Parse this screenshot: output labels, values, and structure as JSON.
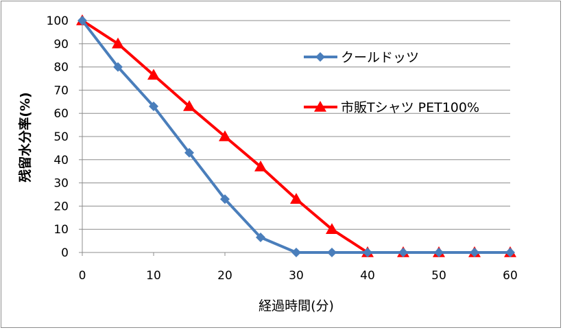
{
  "chart_data": {
    "type": "line",
    "title": "",
    "xlabel": "経過時間(分)",
    "ylabel": "残留水分率(%)",
    "x": [
      0,
      5,
      10,
      15,
      20,
      25,
      30,
      35,
      40,
      45,
      50,
      55,
      60
    ],
    "xlim": [
      0,
      60
    ],
    "ylim": [
      0,
      100
    ],
    "xticks": [
      0,
      10,
      20,
      30,
      40,
      50,
      60
    ],
    "yticks": [
      0,
      10,
      20,
      30,
      40,
      50,
      60,
      70,
      80,
      90,
      100
    ],
    "grid": "horizontal",
    "legend_position": "right",
    "series": [
      {
        "name": "クールドッツ",
        "color": "#4a7ebb",
        "marker": "diamond",
        "values": [
          100,
          80,
          63,
          43,
          23,
          6.5,
          0,
          0,
          0,
          0,
          0,
          0,
          0
        ]
      },
      {
        "name": "市販Tシャツ PET100%",
        "color": "#ff0000",
        "marker": "triangle",
        "values": [
          100,
          90,
          76.5,
          63,
          50,
          37,
          23,
          10,
          0,
          0,
          0,
          0,
          0
        ]
      }
    ]
  }
}
